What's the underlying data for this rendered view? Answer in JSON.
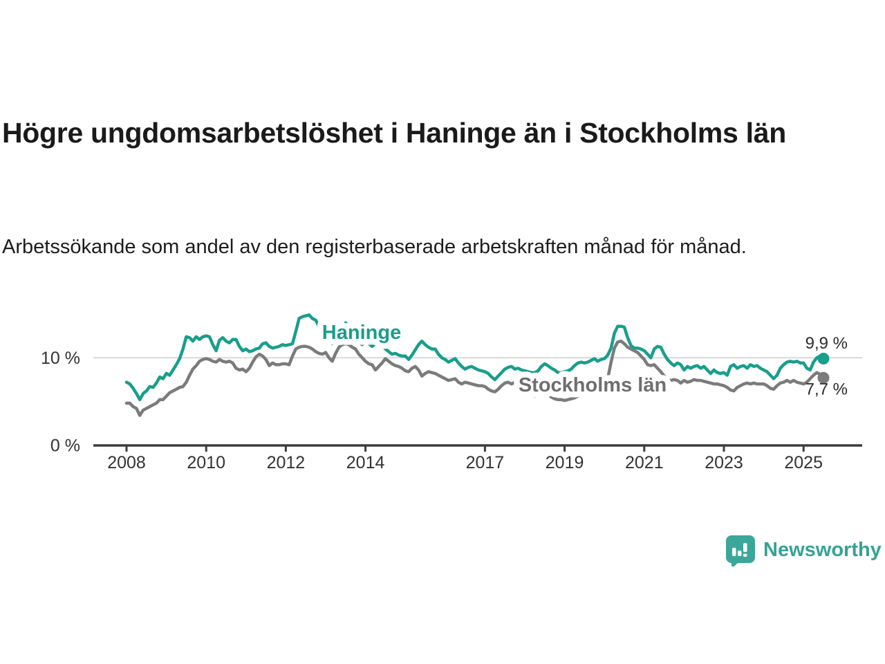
{
  "title": "Högre ungdomsarbetslöshet i Haninge än i Stockholms län",
  "subtitle": "Arbetssökande som andel av den registerbaserade arbetskraften månad för månad.",
  "branding": {
    "logo_text": "Newsworthy",
    "logo_color": "#35a294"
  },
  "colors": {
    "haninge": "#189e8c",
    "stockholm": "#7b7b7b",
    "stockholm_label": "#6e6e6e",
    "axis": "#3c3c3c",
    "grid": "#d9d9d9",
    "tick_text": "#333333"
  },
  "chart_data": {
    "type": "line",
    "title": "Högre ungdomsarbetslöshet i Haninge än i Stockholms län",
    "subtitle": "Arbetssökande som andel av den registerbaserade arbetskraften månad för månad.",
    "unit": "%",
    "x_start_year": 2008,
    "x_resolution": "monthly",
    "x_end": "2025-07",
    "x_ticks": [
      2008,
      2010,
      2012,
      2014,
      2017,
      2019,
      2021,
      2023,
      2025
    ],
    "y_ticks": [
      {
        "value": 0,
        "label": "0 %"
      },
      {
        "value": 10,
        "label": "10 %"
      }
    ],
    "ylim": [
      0,
      16
    ],
    "grid": "horizontal-at-10-only",
    "legend_position": "inline-labels",
    "series": [
      {
        "name": "Haninge",
        "color": "#189e8c",
        "end_value": 9.9,
        "end_label": "9,9 %",
        "values": [
          7.2,
          7.0,
          6.5,
          5.9,
          5.2,
          5.9,
          6.2,
          6.7,
          6.6,
          7.1,
          7.8,
          7.6,
          8.2,
          8.0,
          8.6,
          9.2,
          9.9,
          11.0,
          12.4,
          12.3,
          11.9,
          12.4,
          12.1,
          12.4,
          12.5,
          12.4,
          11.5,
          10.8,
          12.0,
          12.3,
          11.9,
          11.7,
          12.1,
          12.1,
          11.3,
          10.8,
          11.0,
          10.7,
          10.8,
          11.0,
          11.1,
          11.6,
          11.7,
          11.3,
          11.1,
          11.2,
          11.3,
          11.5,
          11.4,
          11.5,
          11.6,
          13.0,
          14.5,
          14.7,
          14.8,
          14.9,
          14.5,
          14.3,
          13.6,
          12.8,
          12.2,
          11.8,
          11.6,
          11.8,
          12.6,
          13.4,
          14.0,
          13.6,
          12.8,
          12.2,
          11.8,
          11.5,
          12.0,
          11.6,
          11.3,
          11.6,
          11.8,
          11.4,
          11.0,
          10.7,
          10.4,
          10.5,
          10.3,
          10.2,
          10.2,
          9.8,
          10.3,
          10.9,
          11.5,
          11.9,
          11.5,
          11.2,
          11.0,
          11.0,
          10.4,
          10.0,
          9.8,
          9.5,
          9.7,
          9.9,
          9.4,
          9.0,
          8.7,
          8.9,
          9.0,
          8.8,
          8.6,
          8.5,
          8.4,
          8.2,
          7.8,
          7.5,
          7.9,
          8.3,
          8.7,
          8.9,
          9.0,
          8.7,
          8.8,
          8.6,
          8.5,
          8.4,
          8.3,
          8.3,
          8.5,
          9.0,
          9.3,
          9.1,
          8.8,
          8.6,
          8.3,
          8.3,
          8.4,
          8.5,
          8.7,
          9.1,
          9.4,
          9.5,
          9.4,
          9.5,
          9.7,
          9.9,
          9.6,
          9.8,
          9.9,
          10.3,
          11.1,
          12.8,
          13.6,
          13.6,
          13.5,
          12.3,
          11.4,
          11.1,
          11.1,
          11.0,
          10.8,
          10.4,
          10.0,
          11.0,
          11.3,
          11.2,
          10.4,
          9.8,
          9.4,
          9.1,
          9.4,
          9.2,
          8.6,
          9.0,
          8.8,
          9.0,
          9.1,
          8.8,
          9.0,
          8.6,
          8.2,
          8.6,
          8.3,
          8.2,
          8.3,
          8.0,
          9.0,
          9.2,
          8.8,
          9.0,
          9.1,
          8.8,
          9.2,
          9.0,
          9.1,
          8.8,
          8.6,
          8.4,
          8.0,
          7.6,
          8.0,
          8.8,
          9.2,
          9.5,
          9.6,
          9.5,
          9.6,
          9.4,
          9.4,
          8.8,
          8.6,
          9.5,
          10.0,
          10.2,
          9.9
        ]
      },
      {
        "name": "Stockholms län",
        "color": "#7b7b7b",
        "end_value": 7.7,
        "end_label": "7,7 %",
        "values": [
          4.8,
          4.8,
          4.4,
          4.2,
          3.4,
          4.0,
          4.2,
          4.4,
          4.6,
          4.8,
          5.2,
          5.2,
          5.6,
          6.0,
          6.2,
          6.4,
          6.6,
          6.7,
          7.2,
          8.0,
          8.7,
          9.1,
          9.6,
          9.8,
          9.9,
          9.8,
          9.6,
          9.5,
          9.8,
          9.6,
          9.5,
          9.6,
          9.4,
          8.8,
          8.6,
          8.7,
          8.4,
          8.8,
          9.5,
          10.1,
          10.4,
          10.2,
          9.8,
          9.1,
          9.4,
          9.2,
          9.2,
          9.3,
          9.3,
          9.2,
          10.2,
          11.0,
          11.2,
          11.3,
          11.3,
          11.2,
          11.0,
          10.7,
          10.5,
          10.4,
          10.6,
          10.0,
          9.6,
          10.5,
          11.2,
          11.5,
          11.6,
          11.5,
          11.2,
          11.0,
          10.4,
          10.0,
          9.6,
          9.3,
          9.2,
          8.6,
          9.0,
          9.4,
          9.9,
          9.6,
          9.3,
          9.1,
          9.0,
          8.8,
          8.5,
          8.4,
          8.8,
          9.0,
          8.6,
          7.9,
          8.2,
          8.4,
          8.3,
          8.2,
          8.0,
          7.8,
          7.6,
          7.4,
          7.5,
          7.6,
          7.2,
          7.0,
          7.2,
          7.1,
          7.0,
          6.9,
          6.8,
          6.8,
          6.7,
          6.4,
          6.2,
          6.1,
          6.4,
          6.8,
          7.1,
          7.2,
          7.0,
          7.2,
          7.1,
          6.9,
          6.5,
          6.1,
          5.8,
          5.6,
          5.7,
          5.9,
          6.0,
          5.8,
          5.5,
          5.3,
          5.2,
          5.2,
          5.1,
          5.2,
          5.3,
          5.4,
          5.6,
          5.8,
          6.0,
          6.1,
          6.2,
          6.3,
          6.4,
          6.5,
          6.8,
          7.6,
          9.5,
          11.1,
          11.8,
          11.9,
          11.6,
          11.2,
          11.0,
          10.8,
          10.6,
          10.2,
          9.8,
          9.2,
          9.1,
          9.2,
          8.8,
          8.4,
          7.9,
          7.5,
          7.4,
          7.5,
          7.4,
          7.1,
          7.4,
          7.2,
          7.3,
          7.5,
          7.4,
          7.4,
          7.3,
          7.2,
          7.1,
          7.0,
          7.0,
          6.9,
          6.8,
          6.6,
          6.3,
          6.2,
          6.6,
          6.8,
          7.0,
          7.1,
          7.0,
          7.1,
          7.0,
          7.0,
          7.0,
          6.8,
          6.5,
          6.4,
          6.8,
          7.1,
          7.2,
          7.4,
          7.2,
          7.4,
          7.2,
          7.1,
          7.0,
          7.2,
          7.6,
          8.0,
          8.3,
          8.1,
          7.7
        ]
      }
    ]
  }
}
